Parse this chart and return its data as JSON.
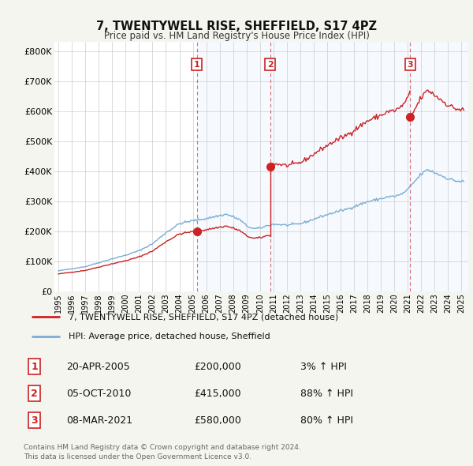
{
  "title": "7, TWENTYWELL RISE, SHEFFIELD, S17 4PZ",
  "subtitle": "Price paid vs. HM Land Registry's House Price Index (HPI)",
  "hpi_color": "#7aadd4",
  "property_color": "#cc2222",
  "vline_color": "#cc3333",
  "band_color": "#ddeeff",
  "ylim": [
    0,
    830000
  ],
  "xlim": [
    1994.7,
    2025.5
  ],
  "ylabel_ticks": [
    0,
    100000,
    200000,
    300000,
    400000,
    500000,
    600000,
    700000,
    800000
  ],
  "ylabel_labels": [
    "£0",
    "£100K",
    "£200K",
    "£300K",
    "£400K",
    "£500K",
    "£600K",
    "£700K",
    "£800K"
  ],
  "xtick_years": [
    1995,
    1996,
    1997,
    1998,
    1999,
    2000,
    2001,
    2002,
    2003,
    2004,
    2005,
    2006,
    2007,
    2008,
    2009,
    2010,
    2011,
    2012,
    2013,
    2014,
    2015,
    2016,
    2017,
    2018,
    2019,
    2020,
    2021,
    2022,
    2023,
    2024,
    2025
  ],
  "sale_years": [
    2005.29,
    2010.76,
    2021.18
  ],
  "sale_prices": [
    200000,
    415000,
    580000
  ],
  "sale_labels": [
    "1",
    "2",
    "3"
  ],
  "legend_property_label": "7, TWENTYWELL RISE, SHEFFIELD, S17 4PZ (detached house)",
  "legend_hpi_label": "HPI: Average price, detached house, Sheffield",
  "table_rows": [
    {
      "num": "1",
      "date": "20-APR-2005",
      "price": "£200,000",
      "change": "3% ↑ HPI"
    },
    {
      "num": "2",
      "date": "05-OCT-2010",
      "price": "£415,000",
      "change": "88% ↑ HPI"
    },
    {
      "num": "3",
      "date": "08-MAR-2021",
      "price": "£580,000",
      "change": "80% ↑ HPI"
    }
  ],
  "footnote": "Contains HM Land Registry data © Crown copyright and database right 2024.\nThis data is licensed under the Open Government Licence v3.0.",
  "bg_color": "#f5f5f0",
  "plot_bg": "#ffffff",
  "grid_color": "#cccccc"
}
